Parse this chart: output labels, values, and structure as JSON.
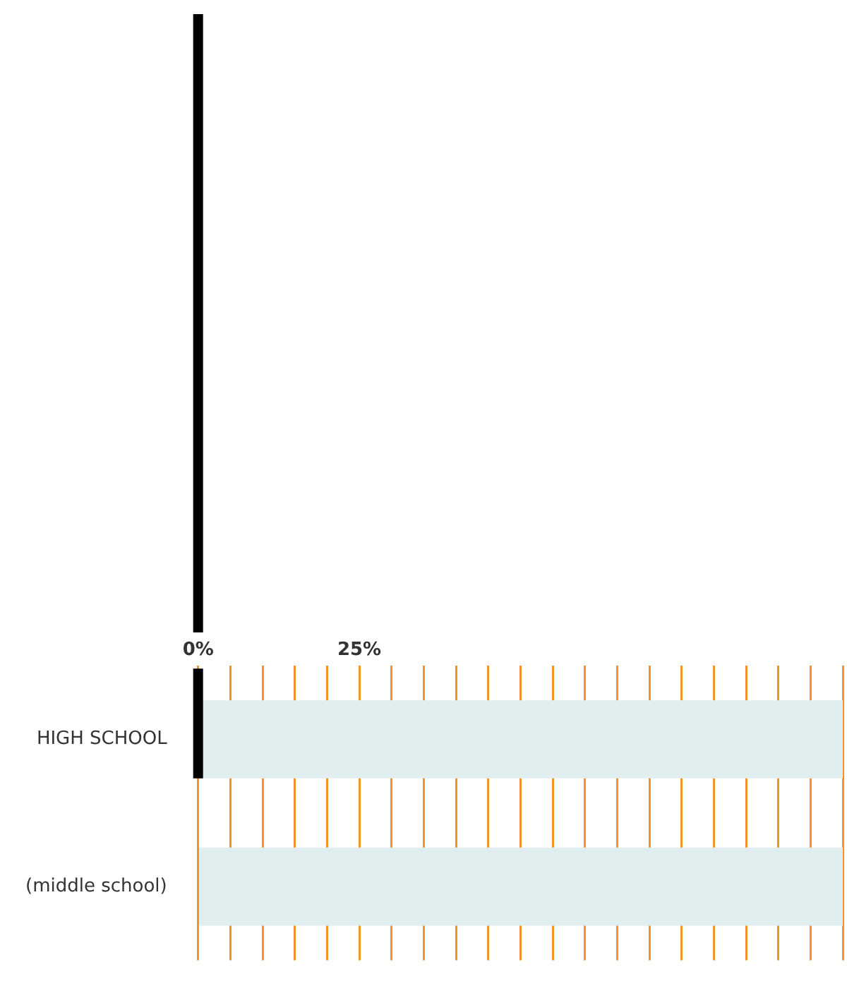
{
  "chart_data": {
    "type": "bar",
    "orientation": "horizontal",
    "categories": [
      "HIGH SCHOOL",
      "(middle school)"
    ],
    "values": [
      100,
      100
    ],
    "color": "#e0eef0",
    "xlim": [
      0,
      100
    ],
    "xticks": [
      {
        "value": 0,
        "label": "0%"
      },
      {
        "value": 5,
        "label": null
      },
      {
        "value": 10,
        "label": null
      },
      {
        "value": 15,
        "label": null
      },
      {
        "value": 20,
        "label": null
      },
      {
        "value": 25,
        "label": "25%"
      },
      {
        "value": 30,
        "label": null
      },
      {
        "value": 35,
        "label": null
      },
      {
        "value": 40,
        "label": null
      },
      {
        "value": 45,
        "label": null
      },
      {
        "value": 50,
        "label": null
      },
      {
        "value": 55,
        "label": null
      },
      {
        "value": 60,
        "label": null
      },
      {
        "value": 65,
        "label": null
      },
      {
        "value": 70,
        "label": null
      },
      {
        "value": 75,
        "label": null
      },
      {
        "value": 80,
        "label": null
      },
      {
        "value": 85,
        "label": null
      },
      {
        "value": 90,
        "label": null
      },
      {
        "value": 95,
        "label": null
      },
      {
        "value": 100,
        "label": null
      }
    ],
    "grid": "x",
    "ref_lines": [
      {
        "axis": "x",
        "value": 0,
        "color": "#000000"
      }
    ]
  }
}
